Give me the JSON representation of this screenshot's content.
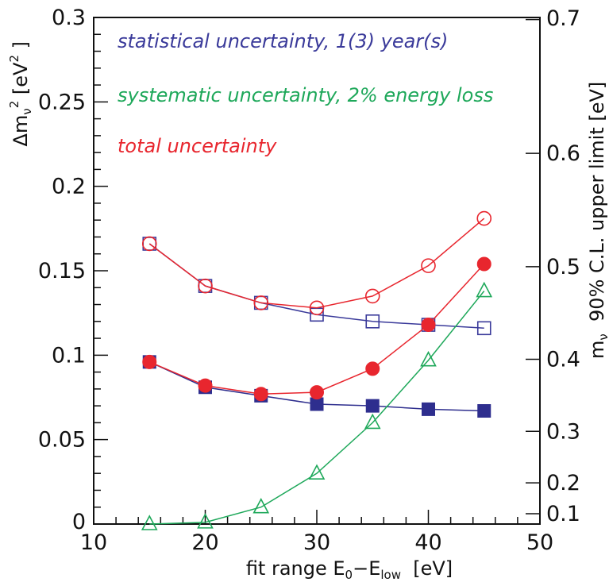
{
  "chart_data": {
    "type": "scatter",
    "xlabel": "fit range E₀−E_low  [eV]",
    "xlabel_parts": {
      "prefix": "fit range E",
      "sub0": "0",
      "mid": "−E",
      "sub_low": "low",
      "suffix": "  [eV]"
    },
    "ylabel": "Δm_ν² [eV²]",
    "ylabel_parts": {
      "prefix": "Δm",
      "sub": "ν",
      "sup": "2",
      "suffix": " [eV",
      "suffix_sup": "2",
      "close": " ]"
    },
    "y2label": "m_ν  90% C.L. upper limit [eV]",
    "y2label_parts": {
      "prefix": "m",
      "sub": "ν",
      "suffix": "  90% C.L. upper limit [eV]"
    },
    "xlim": [
      10,
      50
    ],
    "ylim": [
      0,
      0.3
    ],
    "x_ticks": [
      "10",
      "20",
      "30",
      "40",
      "50"
    ],
    "y_ticks": [
      "0",
      "0.05",
      "0.1",
      "0.15",
      "0.2",
      "0.25",
      "0.3"
    ],
    "y2_scale": "sqrt(1.64·Δm²)",
    "y2_ticks": [
      {
        "label": "0.1",
        "value": 0.1
      },
      {
        "label": "0.2",
        "value": 0.2
      },
      {
        "label": "0.3",
        "value": 0.3
      },
      {
        "label": "0.4",
        "value": 0.4
      },
      {
        "label": "0.5",
        "value": 0.5
      },
      {
        "label": "0.6",
        "value": 0.6
      },
      {
        "label": "0.7",
        "value": 0.7
      }
    ],
    "legend": [
      {
        "text": "statistical uncertainty, 1(3) year(s)",
        "color": "#3a3a9a"
      },
      {
        "text": "systematic uncertainty, 2% energy loss",
        "color": "#1ea85a"
      },
      {
        "text": "total uncertainty",
        "color": "#e8262e"
      }
    ],
    "series": [
      {
        "name": "statistical uncertainty, 1 year",
        "color": "#3a3a9a",
        "marker": "square-open",
        "x": [
          15,
          20,
          25,
          30,
          35,
          40,
          45
        ],
        "y": [
          0.166,
          0.141,
          0.131,
          0.124,
          0.12,
          0.118,
          0.116
        ]
      },
      {
        "name": "statistical uncertainty, 3 years",
        "color": "#2e2e8e",
        "marker": "square-filled",
        "x": [
          15,
          20,
          25,
          30,
          35,
          40,
          45
        ],
        "y": [
          0.096,
          0.081,
          0.076,
          0.071,
          0.07,
          0.068,
          0.067
        ]
      },
      {
        "name": "systematic uncertainty, 2% energy loss",
        "color": "#1ea85a",
        "marker": "triangle-open",
        "x": [
          15,
          20,
          25,
          30,
          35,
          40,
          45
        ],
        "y": [
          0.0,
          0.001,
          0.01,
          0.03,
          0.06,
          0.097,
          0.138
        ]
      },
      {
        "name": "total uncertainty, 1 year",
        "color": "#e8262e",
        "marker": "circle-open",
        "x": [
          15,
          20,
          25,
          30,
          35,
          40,
          45
        ],
        "y": [
          0.166,
          0.141,
          0.131,
          0.128,
          0.135,
          0.153,
          0.181
        ]
      },
      {
        "name": "total uncertainty, 3 years",
        "color": "#e8262e",
        "marker": "circle-filled",
        "x": [
          15,
          20,
          25,
          30,
          35,
          40,
          45
        ],
        "y": [
          0.096,
          0.082,
          0.077,
          0.078,
          0.092,
          0.118,
          0.154
        ]
      }
    ]
  }
}
